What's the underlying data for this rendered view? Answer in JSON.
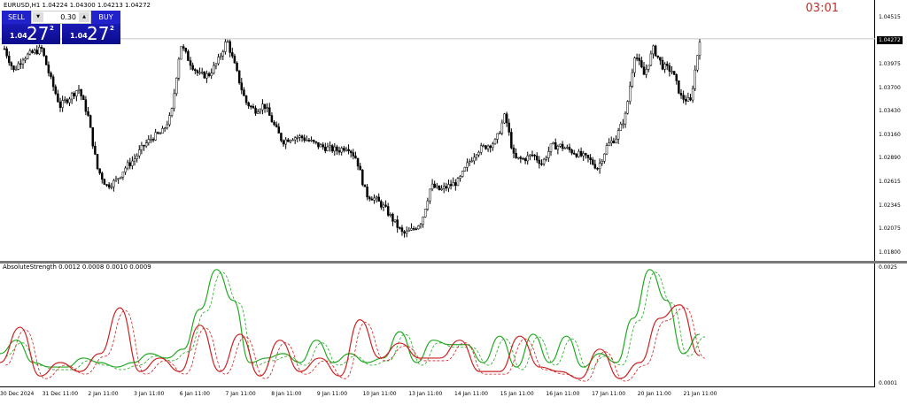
{
  "header": {
    "symbol_line": "EURUSD,H1  1.04224 1.04300 1.04213 1.04272",
    "timer": "03:01"
  },
  "trade_panel": {
    "sell_label": "SELL",
    "buy_label": "BUY",
    "lot": "0.30",
    "sell_price": {
      "prefix": "1.04",
      "big": "27",
      "sup": "2"
    },
    "buy_price": {
      "prefix": "1.04",
      "big": "27",
      "sup": "2"
    }
  },
  "price_axis": {
    "labels": [
      "1.04515",
      "1.03975",
      "1.03700",
      "1.03430",
      "1.03160",
      "1.02890",
      "1.02615",
      "1.02345",
      "1.02075",
      "1.01800"
    ],
    "current": "1.04272"
  },
  "indicator": {
    "title": "AbsoluteStrength 0.0012 0.0008 0.0010 0.0009",
    "axis_labels": [
      "0.0025",
      "0.0001"
    ]
  },
  "time_axis": {
    "labels": [
      "30 Dec 2024",
      "31 Dec 11:00",
      "2 Jan 11:00",
      "3 Jan 11:00",
      "6 Jan 11:00",
      "7 Jan 11:00",
      "8 Jan 11:00",
      "9 Jan 11:00",
      "10 Jan 11:00",
      "13 Jan 11:00",
      "14 Jan 11:00",
      "15 Jan 11:00",
      "16 Jan 11:00",
      "17 Jan 11:00",
      "20 Jan 11:00",
      "21 Jan 11:00"
    ]
  },
  "chart_data": [
    {
      "type": "candlestick",
      "symbol": "EURUSD",
      "timeframe": "H1",
      "ylim": [
        1.0175,
        1.0465
      ],
      "current_price": 1.04272,
      "closes": [
        1.04158,
        1.03904,
        1.04056,
        1.04107,
        1.04158,
        1.03802,
        1.03496,
        1.03598,
        1.037,
        1.03394,
        1.02783,
        1.02579,
        1.0263,
        1.02783,
        1.02885,
        1.03037,
        1.03139,
        1.0319,
        1.03394,
        1.04209,
        1.04005,
        1.03853,
        1.03853,
        1.04005,
        1.0426,
        1.03904,
        1.03547,
        1.03445,
        1.03516,
        1.03292,
        1.03088,
        1.03139,
        1.03139,
        1.03088,
        1.03037,
        1.03007,
        1.02986,
        1.03037,
        1.02885,
        1.02477,
        1.02426,
        1.02324,
        1.02171,
        1.02018,
        1.02069,
        1.02171,
        1.02579,
        1.02528,
        1.02579,
        1.0263,
        1.02834,
        1.02986,
        1.03037,
        1.03088,
        1.03394,
        1.02885,
        1.02885,
        1.02936,
        1.02834,
        1.03037,
        1.03037,
        1.02986,
        1.02936,
        1.02885,
        1.02783,
        1.03037,
        1.03139,
        1.03394,
        1.04107,
        1.03853,
        1.04158,
        1.03955,
        1.03904,
        1.03598,
        1.03547,
        1.04272
      ]
    },
    {
      "type": "line",
      "name": "AbsoluteStrength",
      "ylim": [
        0.0001,
        0.0025
      ],
      "series": [
        {
          "color": "#22aa22",
          "values": [
            0.00076,
            0.00103,
            0.00058,
            0.00049,
            0.00049,
            0.00067,
            0.00058,
            0.00049,
            0.00058,
            0.00076,
            0.00067,
            0.00085,
            0.00165,
            0.00245,
            0.00183,
            0.00058,
            0.00067,
            0.00076,
            0.00058,
            0.00103,
            0.00058,
            0.00076,
            0.00058,
            0.00067,
            0.0012,
            0.00058,
            0.00103,
            0.00094,
            0.00094,
            0.00058,
            0.00111,
            0.00049,
            0.00115,
            0.00058,
            0.00111,
            0.00049,
            0.00076,
            0.00058,
            0.00147,
            0.00245,
            0.00183,
            0.00076,
            0.00115
          ]
        },
        {
          "color": "#cc2222",
          "values": [
            0.00058,
            0.00129,
            0.00031,
            0.00058,
            0.0004,
            0.00076,
            0.00168,
            0.0004,
            0.00067,
            0.0004,
            0.00133,
            0.0004,
            0.00115,
            0.00031,
            0.00103,
            0.0004,
            0.00067,
            0.00031,
            0.00144,
            0.00067,
            0.00097,
            0.00067,
            0.00067,
            0.00103,
            0.0004,
            0.0004,
            0.00111,
            0.00049,
            0.0004,
            0.00026,
            0.00085,
            0.00026,
            0.00058,
            0.00147,
            0.00174,
            0.00072
          ]
        }
      ]
    }
  ]
}
